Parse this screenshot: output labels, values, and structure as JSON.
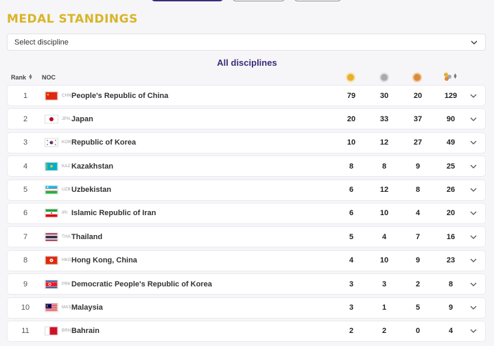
{
  "page_title": "MEDAL STANDINGS",
  "discipline_select": {
    "placeholder": "Select discipline",
    "icon": "chevron-down-icon"
  },
  "subtitle": "All disciplines",
  "table_header": {
    "rank": "Rank",
    "noc": "NOC",
    "icons": [
      "gold-medal-icon",
      "silver-medal-icon",
      "bronze-medal-icon",
      "total-medals-icon",
      "sort-icon"
    ]
  },
  "colors": {
    "title_gold": "#d8b526",
    "accent_purple": "#3b2a7a",
    "gold": "#e8b02e",
    "silver": "#a9a9b0",
    "bronze": "#d98a3a"
  },
  "rows": [
    {
      "rank": "1",
      "code": "CHN",
      "country": "People's Republic of China",
      "gold": "79",
      "silver": "30",
      "bronze": "20",
      "total": "129"
    },
    {
      "rank": "2",
      "code": "JPN",
      "country": "Japan",
      "gold": "20",
      "silver": "33",
      "bronze": "37",
      "total": "90"
    },
    {
      "rank": "3",
      "code": "KOR",
      "country": "Republic of Korea",
      "gold": "10",
      "silver": "12",
      "bronze": "27",
      "total": "49"
    },
    {
      "rank": "4",
      "code": "KAZ",
      "country": "Kazakhstan",
      "gold": "8",
      "silver": "8",
      "bronze": "9",
      "total": "25"
    },
    {
      "rank": "5",
      "code": "UZB",
      "country": "Uzbekistan",
      "gold": "6",
      "silver": "12",
      "bronze": "8",
      "total": "26"
    },
    {
      "rank": "6",
      "code": "IRI",
      "country": "Islamic Republic of Iran",
      "gold": "6",
      "silver": "10",
      "bronze": "4",
      "total": "20"
    },
    {
      "rank": "7",
      "code": "THA",
      "country": "Thailand",
      "gold": "5",
      "silver": "4",
      "bronze": "7",
      "total": "16"
    },
    {
      "rank": "8",
      "code": "HKG",
      "country": "Hong Kong, China",
      "gold": "4",
      "silver": "10",
      "bronze": "9",
      "total": "23"
    },
    {
      "rank": "9",
      "code": "PRK",
      "country": "Democratic People's Republic of Korea",
      "gold": "3",
      "silver": "3",
      "bronze": "2",
      "total": "8"
    },
    {
      "rank": "10",
      "code": "MAS",
      "country": "Malaysia",
      "gold": "3",
      "silver": "1",
      "bronze": "5",
      "total": "9"
    },
    {
      "rank": "11",
      "code": "BRN",
      "country": "Bahrain",
      "gold": "2",
      "silver": "2",
      "bronze": "0",
      "total": "4"
    }
  ]
}
